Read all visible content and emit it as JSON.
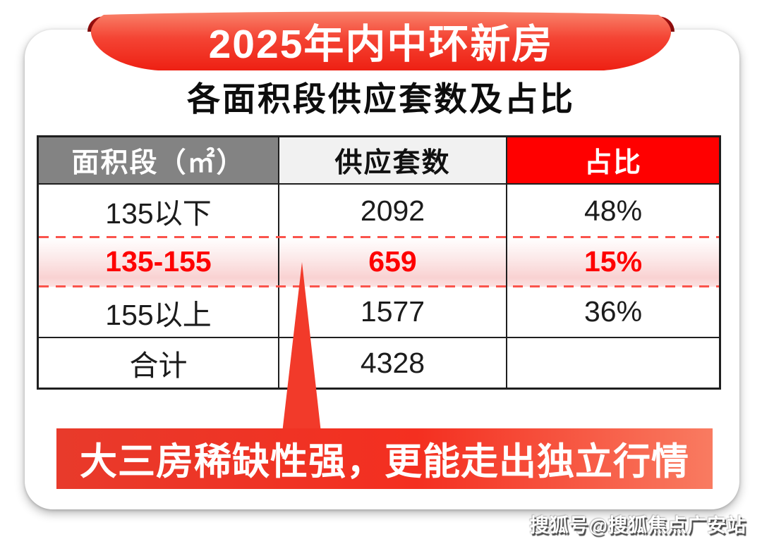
{
  "banner": {
    "title": "2025年内中环新房",
    "subtitle": "各面积段供应套数及占比"
  },
  "table": {
    "headers": [
      "面积段（㎡）",
      "供应套数",
      "占比"
    ],
    "rows": [
      {
        "key": "under-135",
        "area": "135以下",
        "supply": "2092",
        "share": "48%",
        "highlight": false
      },
      {
        "key": "135-155",
        "area": "135-155",
        "supply": "659",
        "share": "15%",
        "highlight": true
      },
      {
        "key": "over-155",
        "area": "155以上",
        "supply": "1577",
        "share": "36%",
        "highlight": false
      },
      {
        "key": "total",
        "area": "合计",
        "supply": "4328",
        "share": "",
        "highlight": false
      }
    ]
  },
  "callout": {
    "text": "大三房稀缺性强，更能走出独立行情"
  },
  "watermark": {
    "text": "搜狐号@搜狐焦点广安站"
  },
  "colors": {
    "ribbon_top": "#f9836b",
    "ribbon_bottom": "#ee2013",
    "ribbon_curl": "#8c0d0d",
    "header_gray": "#838383",
    "header_light_gray": "#f1f1f1",
    "header_red": "#ff0000",
    "highlight_text_red": "#fe0000",
    "dashed_border_red": "#fa544c",
    "callout_red": "#f42f20",
    "arrow_red": "#f23a2a"
  },
  "chart_data": {
    "type": "table",
    "title": "2025年内中环新房 各面积段供应套数及占比",
    "columns": [
      "面积段（㎡）",
      "供应套数",
      "占比"
    ],
    "rows": [
      [
        "135以下",
        2092,
        "48%"
      ],
      [
        "135-155",
        659,
        "15%"
      ],
      [
        "155以上",
        1577,
        "36%"
      ],
      [
        "合计",
        4328,
        ""
      ]
    ],
    "highlighted_row": "135-155",
    "annotation": "大三房稀缺性强，更能走出独立行情",
    "legend_position": "none",
    "grid": true
  }
}
